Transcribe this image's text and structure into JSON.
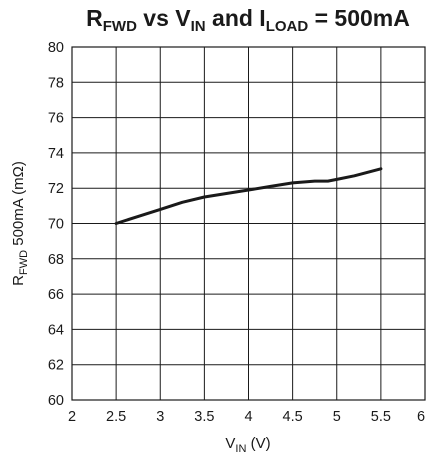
{
  "chart_data": {
    "type": "line",
    "title": {
      "parts": [
        {
          "text": "R",
          "sub": false
        },
        {
          "text": "FWD",
          "sub": true
        },
        {
          "text": " vs V",
          "sub": false
        },
        {
          "text": "IN",
          "sub": true
        },
        {
          "text": " and I",
          "sub": false
        },
        {
          "text": "LOAD",
          "sub": true
        },
        {
          "text": " = 500mA",
          "sub": false
        }
      ]
    },
    "xlabel": {
      "parts": [
        {
          "text": "V",
          "sub": false
        },
        {
          "text": "IN",
          "sub": true
        },
        {
          "text": " (V)",
          "sub": false
        }
      ]
    },
    "ylabel": {
      "parts": [
        {
          "text": "R",
          "sub": false
        },
        {
          "text": "FWD",
          "sub": true
        },
        {
          "text": " 500mA (mΩ)",
          "sub": false
        }
      ]
    },
    "xlim": [
      2,
      6
    ],
    "ylim": [
      60,
      80
    ],
    "xticks": [
      2,
      2.5,
      3,
      3.5,
      4,
      4.5,
      5,
      5.5,
      6
    ],
    "xtick_labels": [
      "2",
      "2.5",
      "3",
      "3.5",
      "4",
      "4.5",
      "5",
      "5.5",
      "6"
    ],
    "yticks": [
      60,
      62,
      64,
      66,
      68,
      70,
      72,
      74,
      76,
      78,
      80
    ],
    "ytick_labels": [
      "60",
      "62",
      "64",
      "66",
      "68",
      "70",
      "72",
      "74",
      "76",
      "78",
      "80"
    ],
    "grid": true,
    "series": [
      {
        "x": [
          2.5,
          2.75,
          3.0,
          3.25,
          3.5,
          3.75,
          4.0,
          4.25,
          4.5,
          4.75,
          4.9,
          5.0,
          5.2,
          5.5
        ],
        "y": [
          70.0,
          70.4,
          70.8,
          71.2,
          71.5,
          71.7,
          71.9,
          72.1,
          72.3,
          72.4,
          72.4,
          72.5,
          72.7,
          73.1
        ],
        "color": "#1a1a1a"
      }
    ]
  }
}
